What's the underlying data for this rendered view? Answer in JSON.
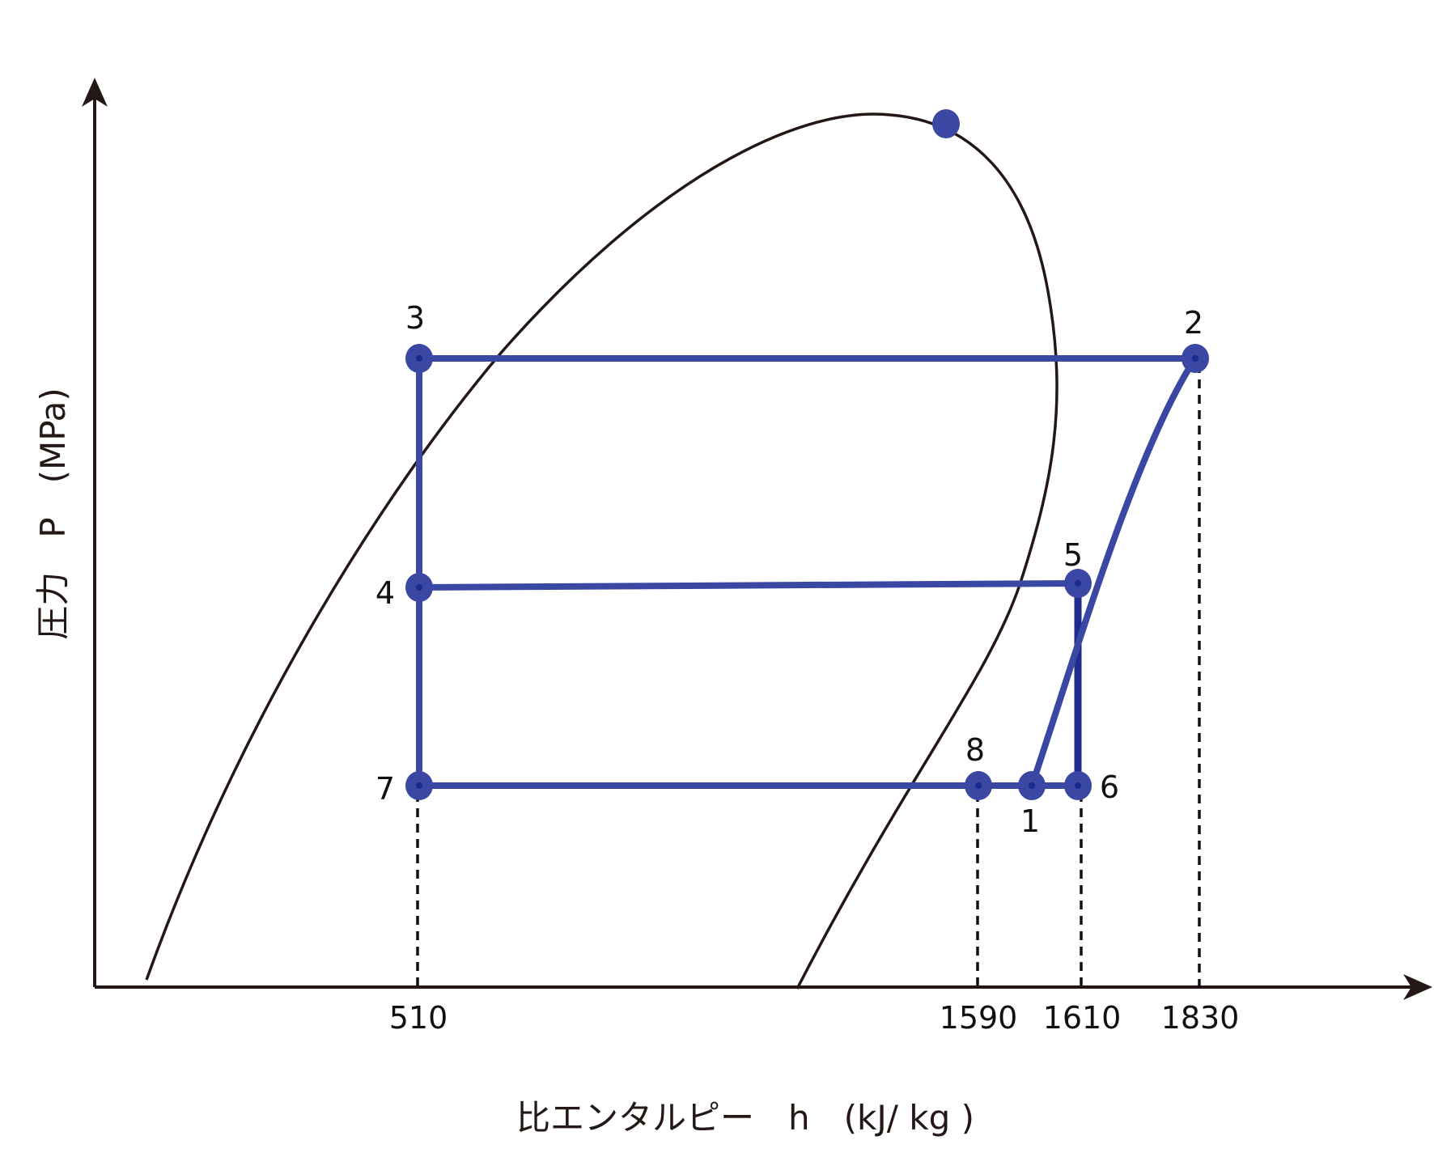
{
  "chart_data": {
    "type": "line",
    "title": "",
    "xlabel": "比エンタルピー　h　(kJ/ kg )",
    "ylabel": "圧力　P　(MPa)",
    "x_ticks": [
      "510",
      "1590",
      "1610",
      "1830"
    ],
    "grid": false,
    "colors": {
      "cycle": "#3a47a3",
      "cycle_dark": "#1e2a8c",
      "curve": "#231815",
      "axis": "#231815"
    },
    "points": [
      {
        "label": "1",
        "h": 1600,
        "pressure_level": "low"
      },
      {
        "label": "2",
        "h": 1830,
        "pressure_level": "high"
      },
      {
        "label": "3",
        "h": 510,
        "pressure_level": "high"
      },
      {
        "label": "4",
        "h": 510,
        "pressure_level": "mid"
      },
      {
        "label": "5",
        "h": 1610,
        "pressure_level": "mid"
      },
      {
        "label": "6",
        "h": 1610,
        "pressure_level": "low"
      },
      {
        "label": "7",
        "h": 510,
        "pressure_level": "low"
      },
      {
        "label": "8",
        "h": 1590,
        "pressure_level": "low"
      }
    ],
    "segments": [
      [
        "3",
        "2"
      ],
      [
        "3",
        "7"
      ],
      [
        "4",
        "5"
      ],
      [
        "5",
        "6"
      ],
      [
        "7",
        "6"
      ],
      [
        "1",
        "2"
      ]
    ],
    "critical_point": true
  }
}
